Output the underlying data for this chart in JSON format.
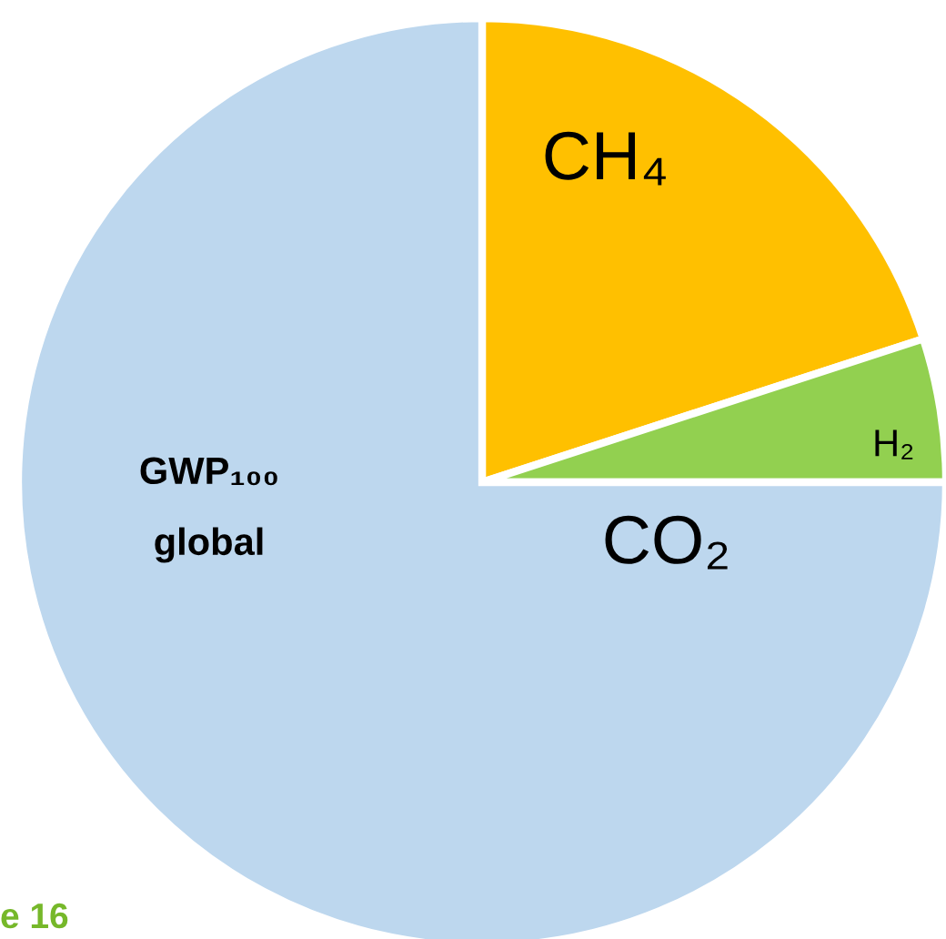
{
  "chart_data": {
    "type": "pie",
    "categories": [
      "CH₄",
      "H₂",
      "CO₂"
    ],
    "values": [
      20,
      5,
      75
    ],
    "colors": [
      "#ffc000",
      "#92d050",
      "#bdd7ee"
    ],
    "annotations": [
      "GWP₁₀₀\nglobal",
      "e 16"
    ]
  }
}
